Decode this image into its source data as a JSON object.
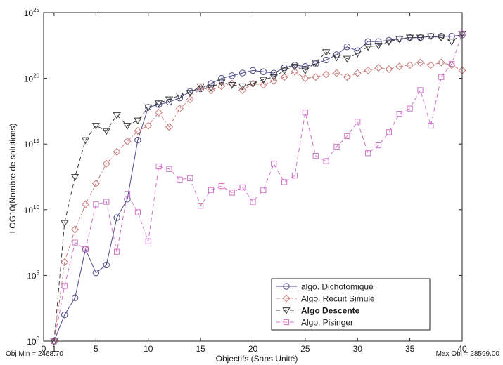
{
  "chart_data": {
    "type": "line",
    "xlabel": "Objectifs (Sans Unité)",
    "ylabel": "LOG10(Nombre de solutions)",
    "xlim": [
      0,
      40
    ],
    "ylim_log10": [
      0,
      25
    ],
    "y_scale": "log",
    "grid": true,
    "legend_position": "bottom-right",
    "x_ticks": [
      0,
      1,
      5,
      10,
      15,
      20,
      25,
      30,
      35,
      40
    ],
    "x_tick_labels": [
      "0",
      "1",
      "5",
      "10",
      "15",
      "20",
      "25",
      "30",
      "35",
      "40"
    ],
    "y_ticks_log10": [
      0,
      5,
      10,
      15,
      20,
      25
    ],
    "y_tick_base": "10",
    "y_tick_exponents": [
      "0",
      "5",
      "10",
      "15",
      "20",
      "25"
    ],
    "annotation_left": "Obj Min = 2468.70",
    "annotation_right": "Max Obj = 28599.00",
    "series": [
      {
        "name": "algo. Dichotomique",
        "color": "#4a4a8a",
        "dash": "solid",
        "marker": "circle",
        "x": [
          1,
          2,
          3,
          4,
          5,
          6,
          7,
          8,
          9,
          10,
          11,
          12,
          13,
          14,
          15,
          16,
          17,
          18,
          19,
          20,
          21,
          22,
          23,
          24,
          25,
          26,
          27,
          28,
          29,
          30,
          31,
          32,
          33,
          34,
          35,
          36,
          37,
          38,
          39,
          40
        ],
        "y": [
          0,
          2,
          3.3,
          7,
          5.2,
          5.8,
          9.4,
          10.8,
          15.3,
          17.8,
          18,
          18.2,
          18.5,
          19,
          19.2,
          19.6,
          20,
          20.2,
          20.4,
          20.6,
          20.5,
          20.4,
          20.8,
          21,
          20.9,
          21.1,
          21.4,
          21.8,
          22.4,
          22.1,
          22.8,
          22.8,
          22.9,
          23,
          23.1,
          23.1,
          23.2,
          23.2,
          23.2,
          23.3
        ]
      },
      {
        "name": "Algo. Recuit Simulé",
        "color": "#c87878",
        "dash": "dashdot",
        "marker": "diamond",
        "x": [
          1,
          2,
          3,
          4,
          5,
          6,
          7,
          8,
          9,
          10,
          11,
          12,
          13,
          14,
          15,
          16,
          17,
          18,
          19,
          20,
          21,
          22,
          23,
          24,
          25,
          26,
          27,
          28,
          29,
          30,
          31,
          32,
          33,
          34,
          35,
          36,
          37,
          38,
          39,
          40
        ],
        "y": [
          0,
          6,
          8.5,
          10.4,
          12,
          13.5,
          14.4,
          15.2,
          16,
          16.4,
          17.4,
          16.3,
          17.7,
          18.4,
          19.3,
          19.1,
          19.4,
          19.6,
          19.1,
          19.6,
          19.5,
          19.8,
          20.1,
          20.5,
          20,
          20.1,
          20.3,
          20.4,
          20.1,
          20.4,
          20.6,
          20.8,
          20.7,
          20.9,
          21,
          21.2,
          21,
          21.2,
          21,
          20.6
        ]
      },
      {
        "name": "Algo Descente",
        "color": "#3a3a3a",
        "dash": "dash",
        "marker": "triangle-down",
        "x": [
          1,
          2,
          3,
          4,
          5,
          6,
          7,
          8,
          9,
          10,
          11,
          12,
          13,
          14,
          15,
          16,
          17,
          18,
          19,
          20,
          21,
          22,
          23,
          24,
          25,
          26,
          27,
          28,
          29,
          30,
          31,
          32,
          33,
          34,
          35,
          36,
          37,
          38,
          39,
          40
        ],
        "y": [
          0,
          9,
          12.5,
          15.3,
          16.4,
          16,
          17.2,
          16.4,
          16.8,
          17.8,
          18.1,
          18.4,
          18.7,
          18.9,
          19.4,
          19.3,
          19.7,
          19.5,
          19.4,
          19.6,
          19.9,
          20.1,
          20.6,
          20.9,
          20.6,
          21.2,
          22,
          21.6,
          21.5,
          21.9,
          22.4,
          22.5,
          22.8,
          23,
          23.1,
          23.1,
          23.2,
          23.1,
          22.8,
          23.4
        ]
      },
      {
        "name": "Algo. Pisinger",
        "color": "#d070c8",
        "dash": "dash",
        "marker": "square",
        "x": [
          1,
          2,
          3,
          4,
          5,
          6,
          7,
          8,
          9,
          10,
          11,
          12,
          13,
          14,
          15,
          16,
          17,
          18,
          19,
          20,
          21,
          22,
          23,
          24,
          25,
          26,
          27,
          28,
          29,
          30,
          31,
          32,
          33,
          34,
          35,
          36,
          37,
          38,
          39,
          40
        ],
        "y": [
          0,
          4.2,
          7.5,
          7,
          10.4,
          10.6,
          6.8,
          11.2,
          9.8,
          7.6,
          13.3,
          13.1,
          12.3,
          12.4,
          10.3,
          11.5,
          11.8,
          11.3,
          11.7,
          10.6,
          11.5,
          13.5,
          12.1,
          12.6,
          17.4,
          14.1,
          13.7,
          14.8,
          15.6,
          16.7,
          14.3,
          14.9,
          15.9,
          17.3,
          17.7,
          19.1,
          16.4,
          20.1,
          21.1,
          23.4
        ]
      }
    ]
  }
}
